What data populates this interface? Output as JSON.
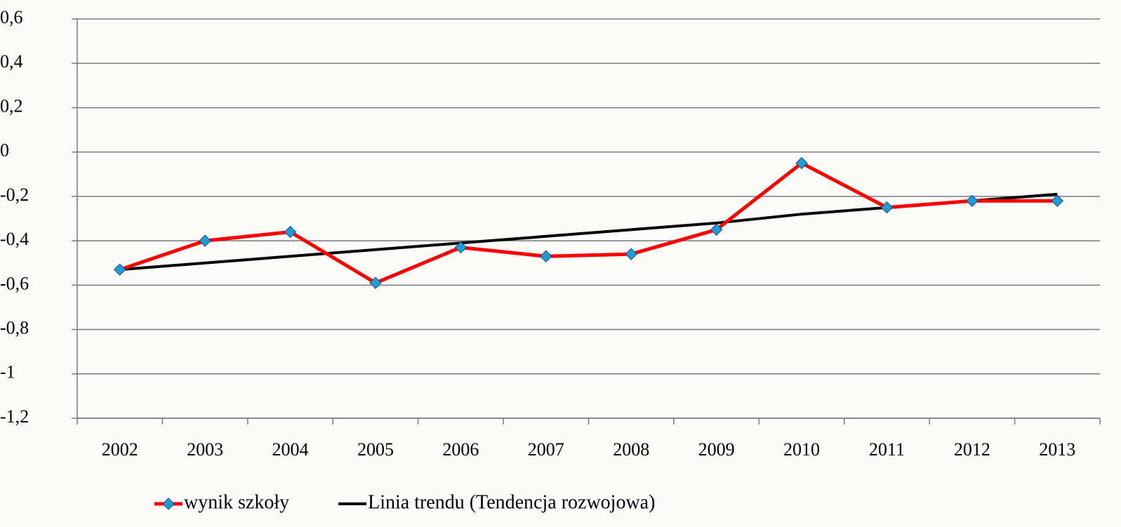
{
  "chart_data": {
    "type": "line",
    "categories": [
      "2002",
      "2003",
      "2004",
      "2005",
      "2006",
      "2007",
      "2008",
      "2009",
      "2010",
      "2011",
      "2012",
      "2013"
    ],
    "series": [
      {
        "name": "wynik szkoły",
        "color": "#ff0000",
        "marker_color": "#1f9bd6",
        "marker": "diamond",
        "values": [
          -0.53,
          -0.4,
          -0.36,
          -0.59,
          -0.43,
          -0.47,
          -0.46,
          -0.35,
          -0.05,
          -0.25,
          -0.22,
          -0.22
        ]
      },
      {
        "name": "Linia trendu (Tendencja rozwojowa)",
        "color": "#000000",
        "values": [
          -0.53,
          -0.5,
          -0.47,
          -0.44,
          -0.41,
          -0.38,
          -0.35,
          -0.32,
          -0.28,
          -0.25,
          -0.22,
          -0.19
        ]
      }
    ],
    "ylim": [
      -1.2,
      0.6
    ],
    "yticks": [
      {
        "value": -1.2,
        "label": "-1,2"
      },
      -1,
      {
        "value": -0.8,
        "label": "-0,8"
      },
      {
        "value": -0.6,
        "label": "-0,6"
      },
      {
        "value": -0.4,
        "label": "-0,4"
      },
      {
        "value": -0.2,
        "label": "-0,2"
      },
      0,
      {
        "value": 0.2,
        "label": "0,2"
      },
      {
        "value": 0.4,
        "label": "0,4"
      },
      {
        "value": 0.6,
        "label": "0,6"
      }
    ],
    "grid": true,
    "legend": "bottom"
  }
}
